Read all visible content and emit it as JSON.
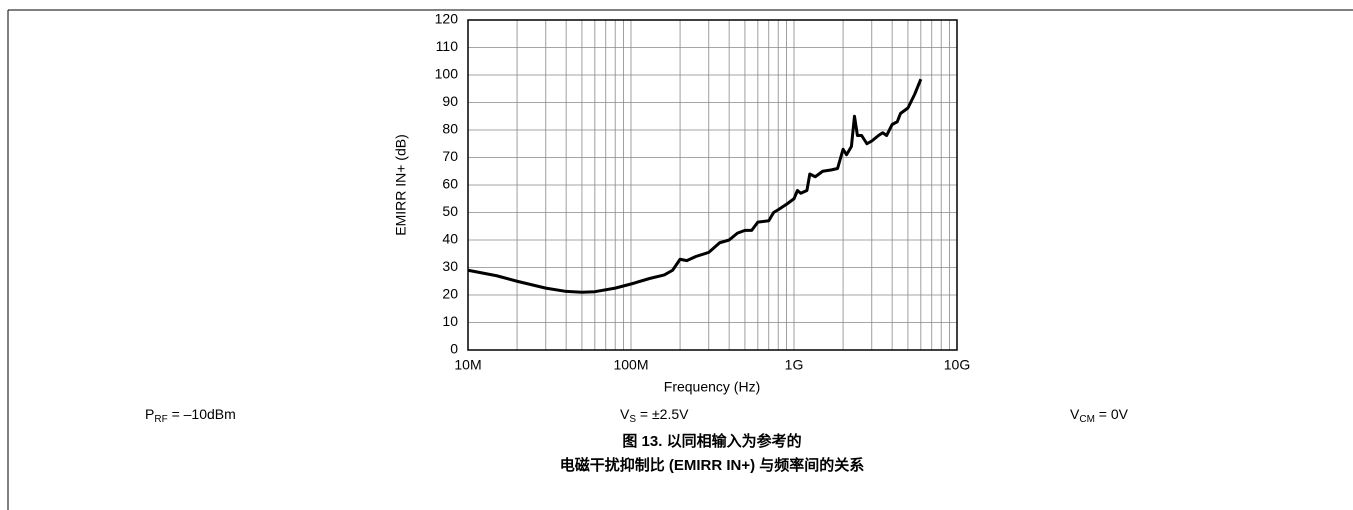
{
  "chart_data": {
    "type": "line",
    "ylabel": "EMIRR IN+ (dB)",
    "xlabel": "Frequency (Hz)",
    "x": [
      10000000,
      15000000,
      20000000,
      30000000,
      40000000,
      50000000,
      60000000,
      80000000,
      100000000,
      130000000,
      160000000,
      180000000,
      200000000,
      220000000,
      250000000,
      300000000,
      350000000,
      400000000,
      450000000,
      500000000,
      550000000,
      600000000,
      700000000,
      750000000,
      800000000,
      900000000,
      1000000000,
      1050000000,
      1100000000,
      1200000000,
      1250000000,
      1350000000,
      1500000000,
      1700000000,
      1850000000,
      2000000000,
      2100000000,
      2250000000,
      2350000000,
      2450000000,
      2600000000,
      2800000000,
      3000000000,
      3300000000,
      3500000000,
      3700000000,
      4000000000,
      4300000000,
      4500000000,
      5000000000,
      5500000000,
      6000000000
    ],
    "values": [
      29,
      27,
      25,
      22.5,
      21.3,
      21,
      21.2,
      22.5,
      24,
      26,
      27.3,
      29,
      33,
      32.5,
      34,
      35.5,
      39,
      40,
      42.5,
      43.5,
      43.5,
      46.5,
      47,
      50,
      51,
      53,
      55,
      58,
      57,
      58,
      64,
      63,
      65,
      65.5,
      66,
      73,
      71,
      74,
      85,
      78,
      78,
      75,
      76,
      78,
      79,
      78,
      82,
      83,
      86,
      88,
      93,
      98.5
    ],
    "color": "#000000",
    "xscale": "log",
    "xlim": [
      10000000,
      10000000000
    ],
    "xticks": [
      {
        "value": 10000000,
        "label": "10M"
      },
      {
        "value": 100000000,
        "label": "100M"
      },
      {
        "value": 1000000000,
        "label": "1G"
      },
      {
        "value": 10000000000,
        "label": "10G"
      }
    ],
    "xminorticks": [
      20000000,
      30000000,
      40000000,
      50000000,
      60000000,
      70000000,
      80000000,
      90000000,
      200000000,
      300000000,
      400000000,
      500000000,
      600000000,
      700000000,
      800000000,
      900000000,
      2000000000,
      3000000000,
      4000000000,
      5000000000,
      6000000000,
      7000000000,
      8000000000,
      9000000000
    ],
    "ylim": [
      0,
      120
    ],
    "yticks": [
      0,
      10,
      20,
      30,
      40,
      50,
      60,
      70,
      80,
      90,
      100,
      110,
      120
    ],
    "grid": true,
    "notes": [
      {
        "text": "P",
        "sub": "RF",
        "rest": " = –10dBm"
      },
      {
        "text": "V",
        "sub": "S",
        "rest": " = ±2.5V"
      },
      {
        "text": "V",
        "sub": "CM",
        "rest": " = 0V"
      }
    ],
    "caption": [
      "图 13. 以同相输入为参考的",
      "电磁干扰抑制比 (EMIRR IN+) 与频率间的关系"
    ]
  }
}
